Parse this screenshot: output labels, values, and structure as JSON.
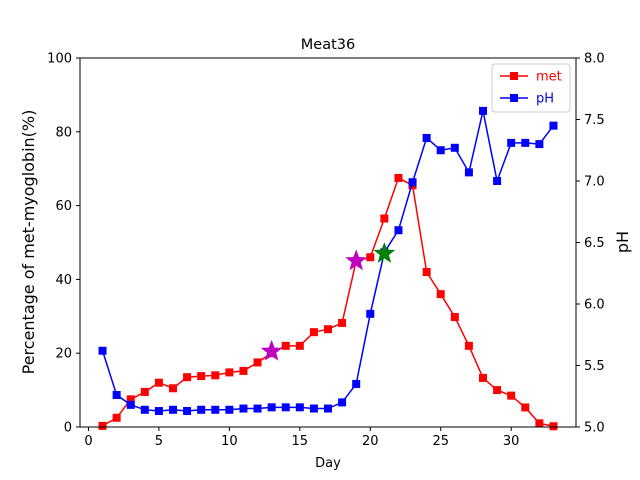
{
  "chart_data": {
    "type": "line",
    "title": "Meat36",
    "xlabel": "Day",
    "ylabel_left": "Percentage of met-myoglobin(%)",
    "ylabel_right": "pH",
    "xlim": [
      -0.6,
      34.6
    ],
    "ylim_left": [
      0,
      100
    ],
    "ylim_right": [
      5.0,
      8.0
    ],
    "xticks": [
      0,
      5,
      10,
      15,
      20,
      25,
      30
    ],
    "yticks_left": [
      0,
      20,
      40,
      60,
      80,
      100
    ],
    "yticks_right": [
      "5.0",
      "5.5",
      "6.0",
      "6.5",
      "7.0",
      "7.5",
      "8.0"
    ],
    "grid": false,
    "legend_position": "top-right",
    "series": [
      {
        "name": "met",
        "axis": "left",
        "color": "#ff0000",
        "marker": "square",
        "x": [
          1,
          2,
          3,
          4,
          5,
          6,
          7,
          8,
          9,
          10,
          11,
          12,
          13,
          14,
          15,
          16,
          17,
          18,
          19,
          20,
          21,
          22,
          23,
          24,
          25,
          26,
          27,
          28,
          29,
          30,
          31,
          32,
          33
        ],
        "y": [
          0.3,
          2.5,
          7.5,
          9.5,
          12,
          10.5,
          13.5,
          13.8,
          14,
          14.8,
          15.2,
          17.5,
          20,
          22,
          22,
          25.7,
          26.5,
          28.2,
          45,
          46,
          56.5,
          67.5,
          65.5,
          42,
          36,
          29.8,
          22,
          13.3,
          10,
          8.5,
          5.3,
          1,
          0.2
        ]
      },
      {
        "name": "pH",
        "axis": "right",
        "color": "#0000ff",
        "marker": "square",
        "x": [
          1,
          2,
          3,
          4,
          5,
          6,
          7,
          8,
          9,
          10,
          11,
          12,
          13,
          14,
          15,
          16,
          17,
          18,
          19,
          20,
          21,
          22,
          23,
          24,
          25,
          26,
          27,
          28,
          29,
          30,
          31,
          32,
          33
        ],
        "y": [
          5.62,
          5.26,
          5.18,
          5.14,
          5.13,
          5.14,
          5.13,
          5.14,
          5.14,
          5.14,
          5.15,
          5.15,
          5.16,
          5.16,
          5.16,
          5.15,
          5.15,
          5.2,
          5.35,
          5.92,
          6.42,
          6.6,
          6.99,
          7.35,
          7.25,
          7.27,
          7.07,
          7.57,
          7.0,
          7.31,
          7.31,
          7.3,
          7.45
        ]
      }
    ],
    "annotations": [
      {
        "type": "star",
        "color": "#bf00bf",
        "axis": "left",
        "x": 13,
        "y": 20.5
      },
      {
        "type": "star",
        "color": "#bf00bf",
        "axis": "left",
        "x": 19,
        "y": 45
      },
      {
        "type": "star",
        "color": "#008000",
        "axis": "right",
        "x": 21,
        "y": 6.41
      }
    ]
  }
}
